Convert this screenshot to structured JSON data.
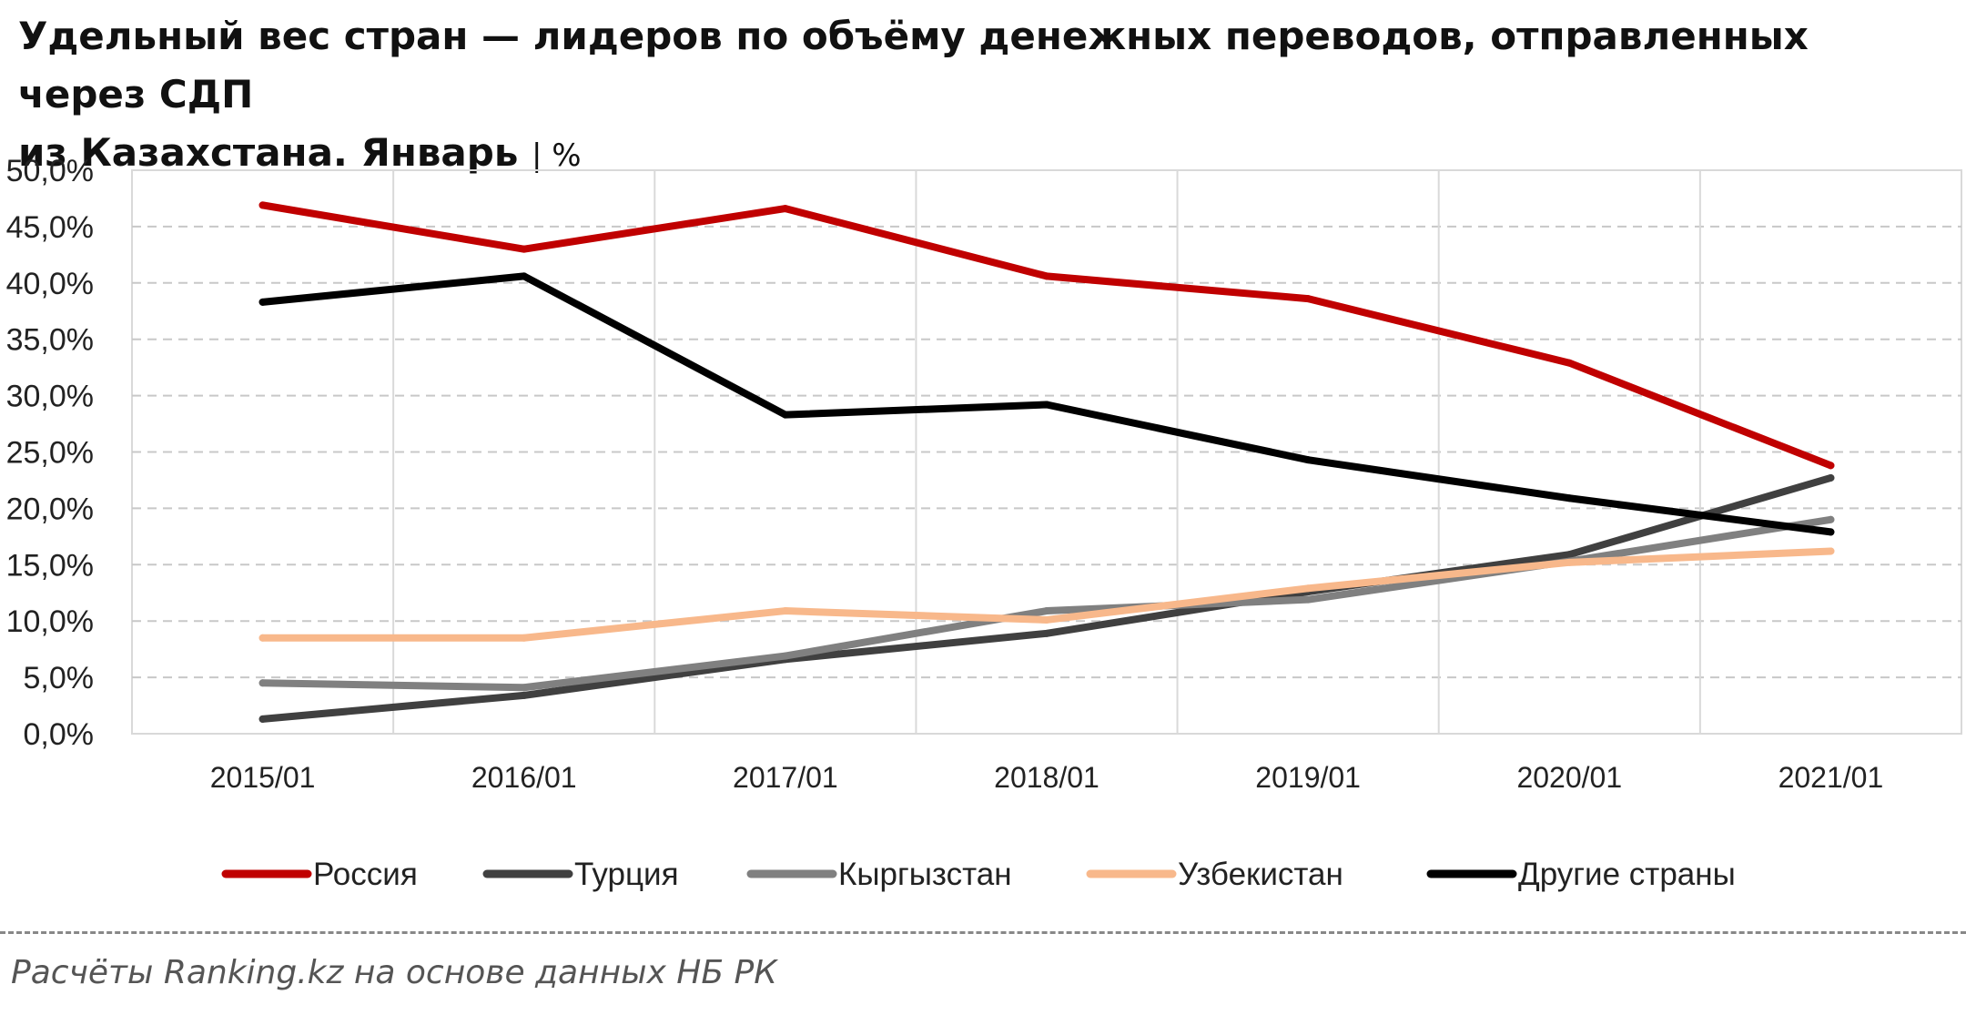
{
  "title": {
    "line1": "Удельный вес стран — лидеров по объёму денежных переводов, отправленных через СДП",
    "line2": "из Казахстана. Январь",
    "unit": "| %"
  },
  "source": "Расчёты Ranking.kz на основе данных  НБ  РК",
  "chart_data": {
    "type": "line",
    "categories": [
      "2015/01",
      "2016/01",
      "2017/01",
      "2018/01",
      "2019/01",
      "2020/01",
      "2021/01"
    ],
    "ylim": [
      0,
      50
    ],
    "yticks": [
      0,
      5,
      10,
      15,
      20,
      25,
      30,
      35,
      40,
      45,
      50
    ],
    "ytick_labels": [
      "0,0%",
      "5,0%",
      "10,0%",
      "15,0%",
      "20,0%",
      "25,0%",
      "30,0%",
      "35,0%",
      "40,0%",
      "45,0%",
      "50,0%"
    ],
    "grid": true,
    "legend_position": "bottom",
    "series": [
      {
        "name": "Россия",
        "color": "#C00000",
        "values": [
          46.9,
          43.0,
          46.6,
          40.6,
          38.6,
          32.9,
          23.8
        ]
      },
      {
        "name": "Турция",
        "color": "#404040",
        "values": [
          1.3,
          3.4,
          6.6,
          8.9,
          12.6,
          15.9,
          22.7
        ]
      },
      {
        "name": "Кыргызстан",
        "color": "#808080",
        "values": [
          4.5,
          4.1,
          6.9,
          10.9,
          11.9,
          15.3,
          19.0
        ]
      },
      {
        "name": "Узбекистан",
        "color": "#F8B88B",
        "values": [
          8.5,
          8.5,
          10.9,
          10.1,
          12.9,
          15.2,
          16.2
        ]
      },
      {
        "name": "Другие страны",
        "color": "#000000",
        "values": [
          38.3,
          40.6,
          28.3,
          29.2,
          24.3,
          20.9,
          17.9
        ]
      }
    ]
  }
}
